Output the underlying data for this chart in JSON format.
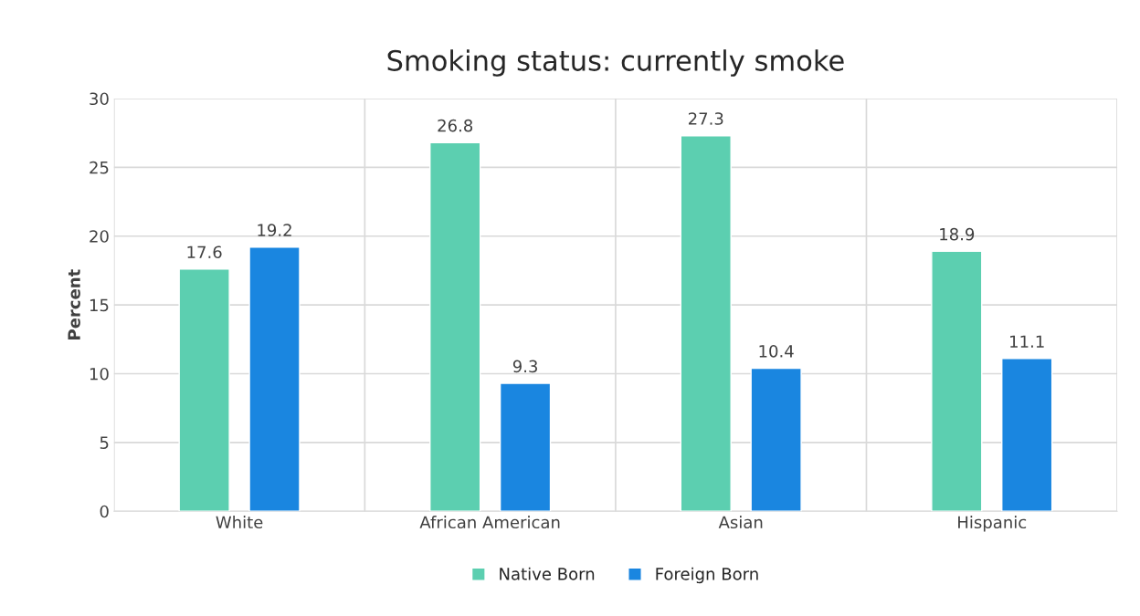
{
  "chart_data": {
    "type": "bar",
    "title": "Smoking status: currently smoke",
    "ylabel": "Percent",
    "categories": [
      "White",
      "African American",
      "Asian",
      "Hispanic"
    ],
    "series": [
      {
        "name": "Native Born",
        "color": "#5ccfb0",
        "values": [
          17.6,
          26.8,
          27.3,
          18.9
        ]
      },
      {
        "name": "Foreign Born",
        "color": "#1a86e0",
        "values": [
          19.2,
          9.3,
          10.4,
          11.1
        ]
      }
    ],
    "ylim": [
      0,
      30
    ],
    "yticks": [
      0,
      5,
      10,
      15,
      20,
      25,
      30
    ],
    "grid": true,
    "legend": "bottom",
    "data_labels": true
  }
}
